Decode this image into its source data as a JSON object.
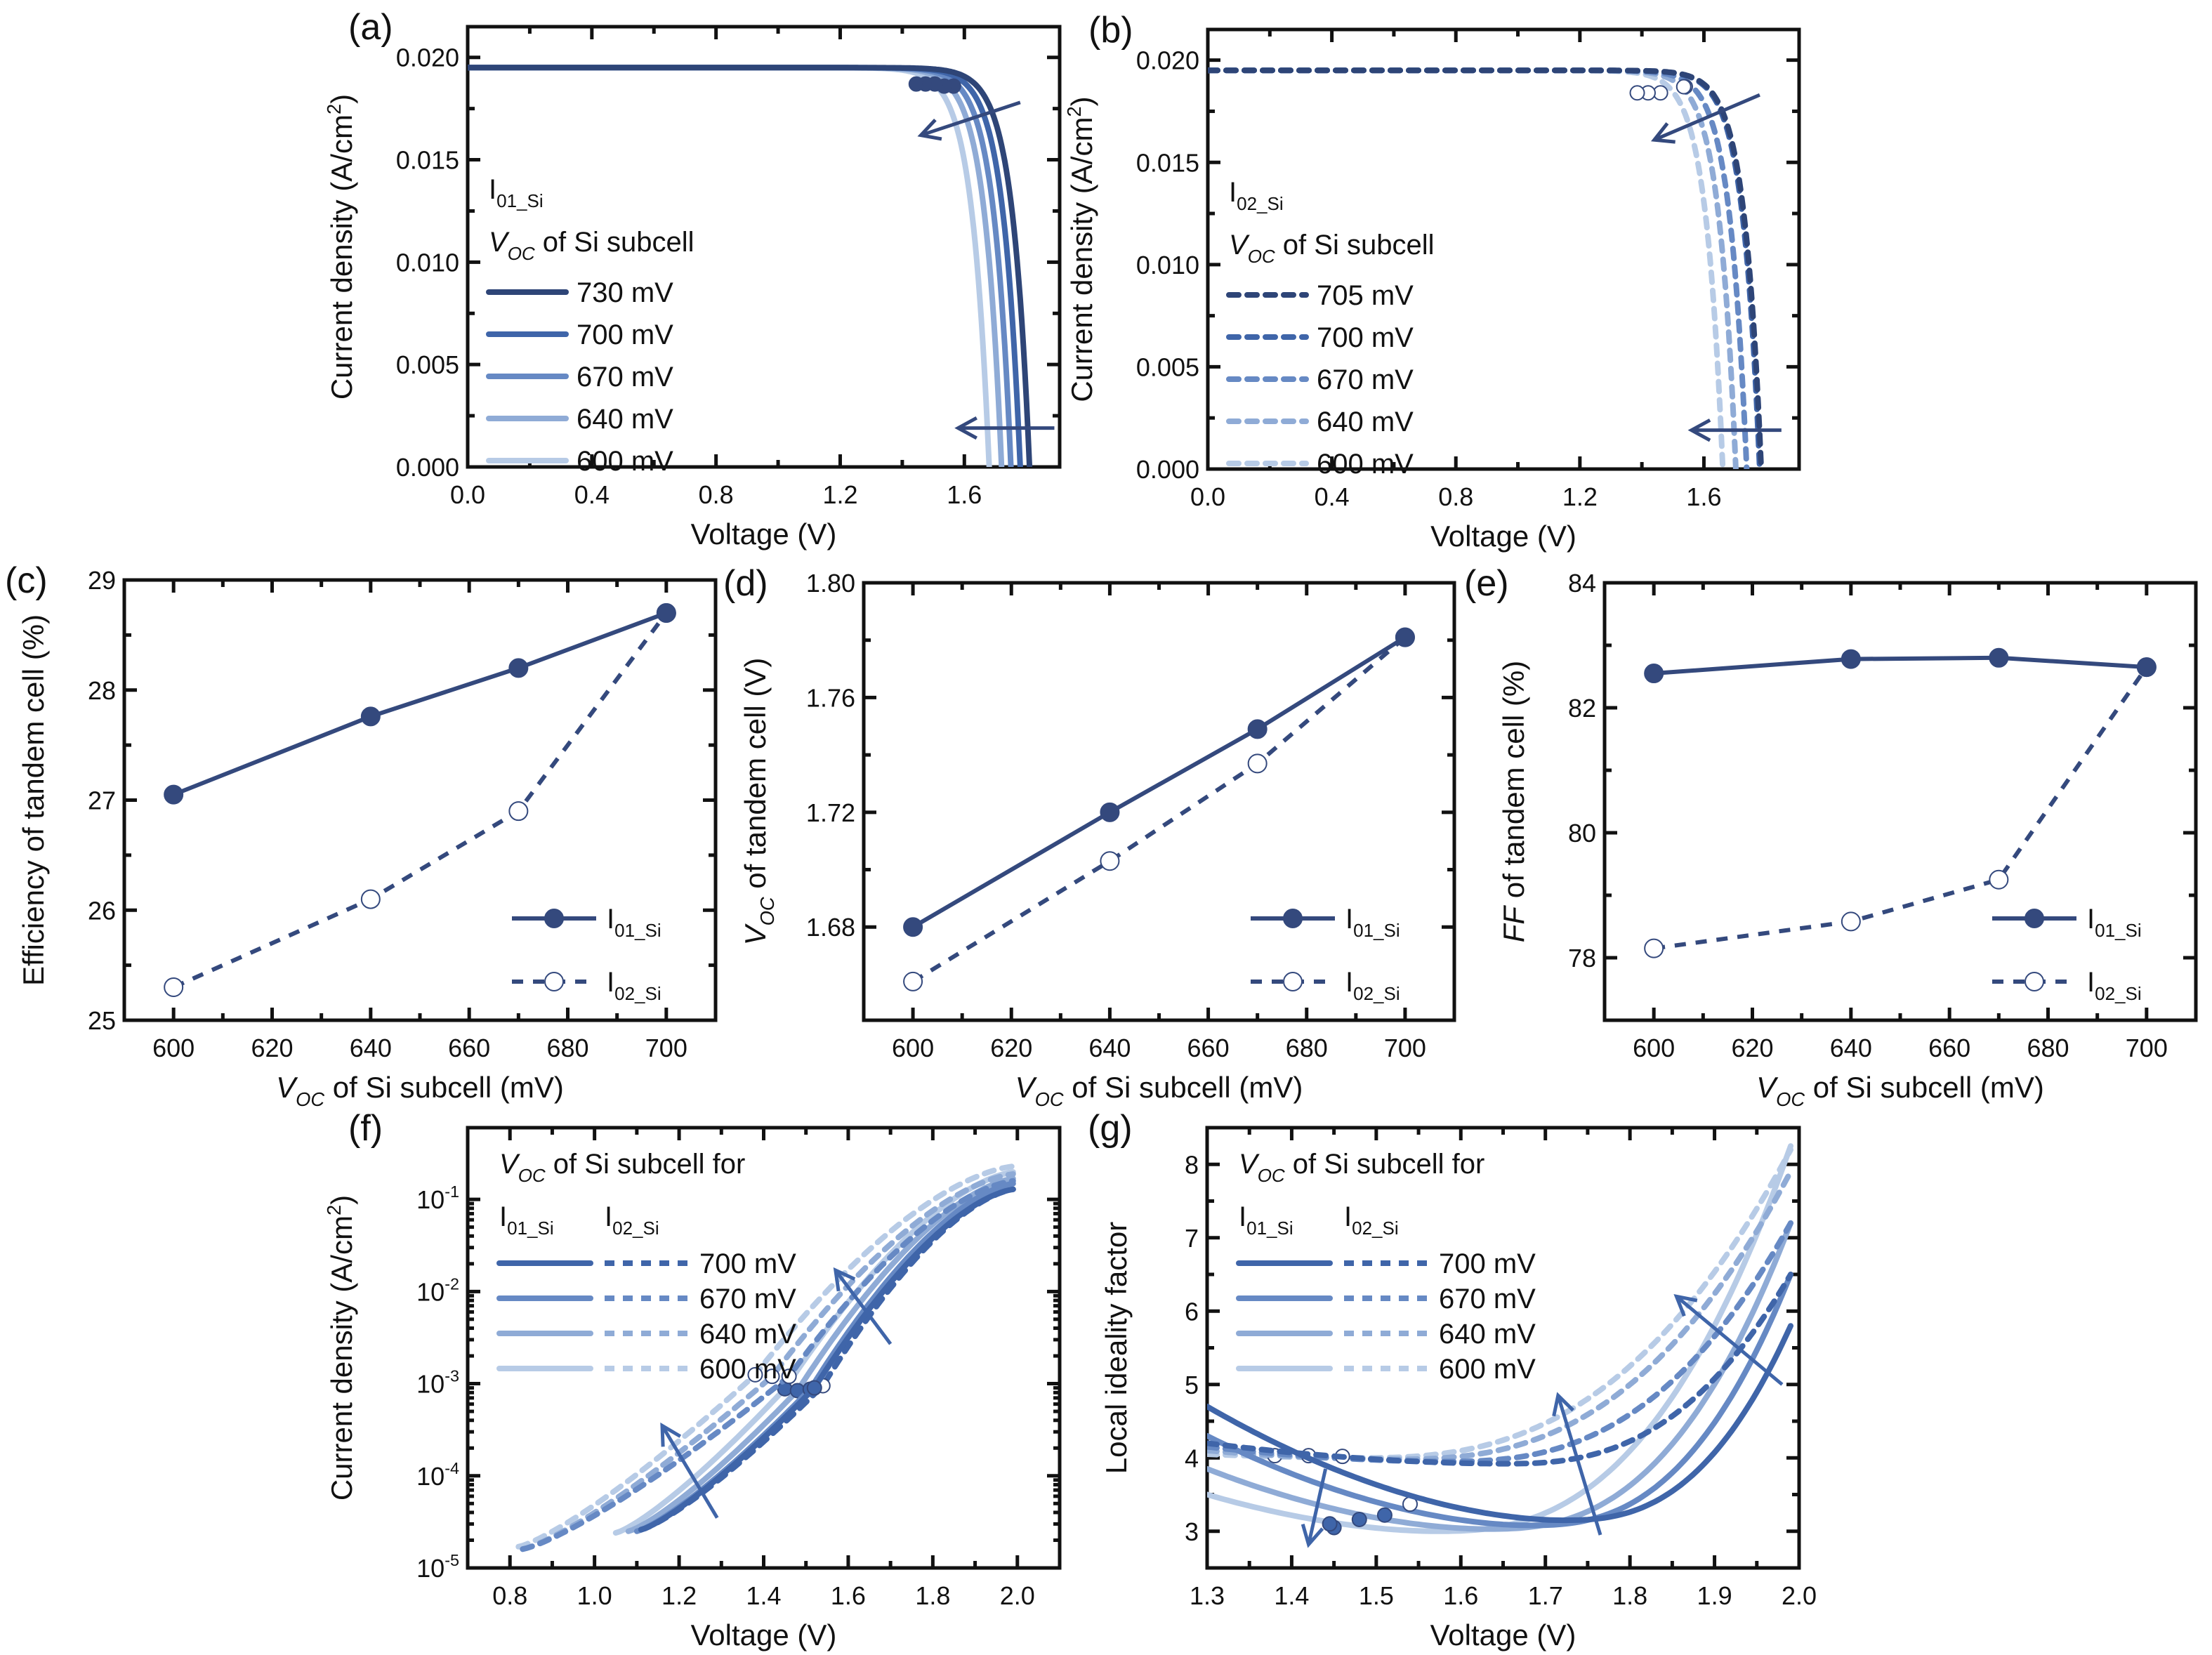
{
  "colors": {
    "s730": "#2e4577",
    "s705": "#2e4577",
    "s700": "#3f65a9",
    "s670": "#6689c4",
    "s640": "#8fabd6",
    "s600": "#b7cbe6",
    "marker": "#34497d",
    "axis": "#111111"
  },
  "chart_data": [
    {
      "id": "a",
      "panel_label": "(a)",
      "type": "line",
      "xlabel": "Voltage (V)",
      "ylabel": "Current density (A/cm²)",
      "xlim": [
        0.0,
        1.907
      ],
      "ylim": [
        0.0,
        0.0215
      ],
      "xticks": [
        0.0,
        0.4,
        0.8,
        1.2,
        1.6
      ],
      "xtick_labels": [
        "0.0",
        "0.4",
        "0.8",
        "1.2",
        "1.6"
      ],
      "yticks": [
        0.0,
        0.005,
        0.01,
        0.015,
        0.02
      ],
      "ytick_labels": [
        "0.000",
        "0.005",
        "0.010",
        "0.015",
        "0.020"
      ],
      "legend_header": [
        "I01_Si",
        "VOC of Si subcell"
      ],
      "legend_location": "center-left",
      "line_style": "solid",
      "jsc": 0.0195,
      "series": [
        {
          "name": "730 mV",
          "color_key": "s730",
          "voc": 1.81,
          "mpp": [
            1.565,
            0.0186
          ]
        },
        {
          "name": "700 mV",
          "color_key": "s700",
          "voc": 1.78,
          "mpp": [
            1.535,
            0.0186
          ]
        },
        {
          "name": "670 mV",
          "color_key": "s670",
          "voc": 1.75,
          "mpp": [
            1.505,
            0.0187
          ]
        },
        {
          "name": "640 mV",
          "color_key": "s640",
          "voc": 1.72,
          "mpp": [
            1.475,
            0.0187
          ]
        },
        {
          "name": "600 mV",
          "color_key": "s600",
          "voc": 1.68,
          "mpp": [
            1.445,
            0.0187
          ]
        }
      ],
      "annotations": [
        {
          "type": "arrow",
          "from": [
            1.78,
            0.0178
          ],
          "to": [
            1.46,
            0.0162
          ]
        },
        {
          "type": "arrow",
          "from": [
            1.89,
            0.0019
          ],
          "to": [
            1.58,
            0.0019
          ]
        }
      ]
    },
    {
      "id": "b",
      "panel_label": "(b)",
      "type": "line",
      "xlabel": "Voltage (V)",
      "ylabel": "Current density (A/cm²)",
      "xlim": [
        0.0,
        1.907
      ],
      "ylim": [
        0.0,
        0.0215
      ],
      "xticks": [
        0.0,
        0.4,
        0.8,
        1.2,
        1.6
      ],
      "xtick_labels": [
        "0.0",
        "0.4",
        "0.8",
        "1.2",
        "1.6"
      ],
      "yticks": [
        0.0,
        0.005,
        0.01,
        0.015,
        0.02
      ],
      "ytick_labels": [
        "0.000",
        "0.005",
        "0.010",
        "0.015",
        "0.020"
      ],
      "legend_header": [
        "I02_Si",
        "VOC of Si subcell"
      ],
      "legend_location": "center-left",
      "line_style": "dashed",
      "jsc": 0.0195,
      "series": [
        {
          "name": "705 mV",
          "color_key": "s705",
          "voc": 1.785,
          "mpp": [
            1.54,
            0.0187
          ]
        },
        {
          "name": "700 mV",
          "color_key": "s700",
          "voc": 1.78,
          "mpp": [
            1.535,
            0.0187
          ]
        },
        {
          "name": "670 mV",
          "color_key": "s670",
          "voc": 1.738,
          "mpp": [
            1.46,
            0.0184
          ]
        },
        {
          "name": "640 mV",
          "color_key": "s640",
          "voc": 1.703,
          "mpp": [
            1.42,
            0.0184
          ]
        },
        {
          "name": "600 mV",
          "color_key": "s600",
          "voc": 1.661,
          "mpp": [
            1.385,
            0.0184
          ]
        }
      ],
      "annotations": [
        {
          "type": "arrow",
          "from": [
            1.78,
            0.0183
          ],
          "to": [
            1.44,
            0.0161
          ]
        },
        {
          "type": "arrow",
          "from": [
            1.85,
            0.0019
          ],
          "to": [
            1.56,
            0.0019
          ]
        }
      ]
    },
    {
      "id": "c",
      "panel_label": "(c)",
      "type": "line",
      "xlabel": "VOC of Si subcell (mV)",
      "ylabel": "Efficiency of tandem cell (%)",
      "xlim": [
        590,
        710
      ],
      "ylim": [
        25,
        29
      ],
      "xticks": [
        600,
        620,
        640,
        660,
        680,
        700
      ],
      "xtick_labels": [
        "600",
        "620",
        "640",
        "660",
        "680",
        "700"
      ],
      "yticks": [
        25,
        26,
        27,
        28,
        29
      ],
      "ytick_labels": [
        "25",
        "26",
        "27",
        "28",
        "29"
      ],
      "legend_location": "bottom-right",
      "x": [
        600,
        640,
        670,
        700
      ],
      "series": [
        {
          "name": "I01_Si",
          "style": "solid",
          "marker": "filled",
          "values": [
            27.05,
            27.76,
            28.2,
            28.7
          ]
        },
        {
          "name": "I02_Si",
          "style": "dashed",
          "marker": "open",
          "values": [
            25.3,
            26.1,
            26.9,
            28.7
          ]
        }
      ]
    },
    {
      "id": "d",
      "panel_label": "(d)",
      "type": "line",
      "xlabel": "VOC of Si subcell (mV)",
      "ylabel": "VOC of tandem cell (V)",
      "xlim": [
        590,
        710
      ],
      "ylim": [
        1.6475,
        1.8
      ],
      "xticks": [
        600,
        620,
        640,
        660,
        680,
        700
      ],
      "xtick_labels": [
        "600",
        "620",
        "640",
        "660",
        "680",
        "700"
      ],
      "yticks": [
        1.68,
        1.72,
        1.76,
        1.8
      ],
      "ytick_labels": [
        "1.68",
        "1.72",
        "1.76",
        "1.80"
      ],
      "legend_location": "bottom-right",
      "x": [
        600,
        640,
        670,
        700
      ],
      "series": [
        {
          "name": "I01_Si",
          "style": "solid",
          "marker": "filled",
          "values": [
            1.68,
            1.72,
            1.749,
            1.781
          ]
        },
        {
          "name": "I02_Si",
          "style": "dashed",
          "marker": "open",
          "values": [
            1.661,
            1.703,
            1.737,
            1.781
          ]
        }
      ]
    },
    {
      "id": "e",
      "panel_label": "(e)",
      "type": "line",
      "xlabel": "VOC of Si subcell (mV)",
      "ylabel": "FF of tandem cell (%)",
      "xlim": [
        590,
        710
      ],
      "ylim": [
        77,
        84
      ],
      "xticks": [
        600,
        620,
        640,
        660,
        680,
        700
      ],
      "xtick_labels": [
        "600",
        "620",
        "640",
        "660",
        "680",
        "700"
      ],
      "yticks": [
        78,
        80,
        82,
        84
      ],
      "ytick_labels": [
        "78",
        "80",
        "82",
        "84"
      ],
      "legend_location": "bottom-right",
      "x": [
        600,
        640,
        670,
        700
      ],
      "series": [
        {
          "name": "I01_Si",
          "style": "solid",
          "marker": "filled",
          "values": [
            82.55,
            82.78,
            82.8,
            82.65
          ]
        },
        {
          "name": "I02_Si",
          "style": "dashed",
          "marker": "open",
          "values": [
            78.15,
            78.58,
            79.25,
            82.65
          ]
        }
      ]
    },
    {
      "id": "f",
      "panel_label": "(f)",
      "type": "line",
      "scale_y": "log",
      "xlabel": "Voltage (V)",
      "ylabel": "Current density (A/cm²)",
      "xlim": [
        0.7,
        2.1
      ],
      "ylim": [
        1e-05,
        0.6
      ],
      "xticks": [
        0.8,
        1.0,
        1.2,
        1.4,
        1.6,
        1.8,
        2.0
      ],
      "xtick_labels": [
        "0.8",
        "1.0",
        "1.2",
        "1.4",
        "1.6",
        "1.8",
        "2.0"
      ],
      "yticks": [
        1e-05,
        0.0001,
        0.001,
        0.01,
        0.1
      ],
      "ytick_labels": [
        "10-5",
        "10-4",
        "10-3",
        "10-2",
        "10-1"
      ],
      "legend_header": [
        "VOC of Si subcell for",
        "I01_Si",
        "I02_Si"
      ],
      "legend_location": "top-left",
      "series": [
        {
          "name": "700 mV",
          "color_key": "s700",
          "solid": {
            "x0": 1.11,
            "y0": 2.6e-05,
            "mpp": [
              1.52,
              0.0009
            ],
            "yend": 0.13
          },
          "dashed": {
            "x0": 1.11,
            "y0": 2.6e-05,
            "mpp": [
              1.54,
              0.00095
            ],
            "yend": 0.13
          }
        },
        {
          "name": "670 mV",
          "color_key": "s670",
          "solid": {
            "x0": 1.1,
            "y0": 2.5e-05,
            "mpp": [
              1.51,
              0.00087
            ],
            "yend": 0.15
          },
          "dashed": {
            "x0": 0.83,
            "y0": 1.6e-05,
            "mpp": [
              1.46,
              0.0012
            ],
            "yend": 0.16
          }
        },
        {
          "name": "640 mV",
          "color_key": "s640",
          "solid": {
            "x0": 1.08,
            "y0": 2.5e-05,
            "mpp": [
              1.48,
              0.00084
            ],
            "yend": 0.17
          },
          "dashed": {
            "x0": 0.83,
            "y0": 1.6e-05,
            "mpp": [
              1.42,
              0.0012
            ],
            "yend": 0.19
          }
        },
        {
          "name": "600 mV",
          "color_key": "s600",
          "solid": {
            "x0": 1.05,
            "y0": 2.4e-05,
            "mpp": [
              1.45,
              0.00088
            ],
            "yend": 0.2
          },
          "dashed": {
            "x0": 0.82,
            "y0": 1.7e-05,
            "mpp": [
              1.38,
              0.00125
            ],
            "yend": 0.23
          }
        }
      ],
      "annotations": [
        {
          "type": "arrow",
          "from": [
            1.29,
            3.5e-05
          ],
          "to": [
            1.16,
            0.00035
          ]
        },
        {
          "type": "arrow",
          "from": [
            1.7,
            0.0027
          ],
          "to": [
            1.57,
            0.017
          ]
        }
      ]
    },
    {
      "id": "g",
      "panel_label": "(g)",
      "type": "line",
      "xlabel": "Voltage (V)",
      "ylabel": "Local ideality factor",
      "xlim": [
        1.3,
        2.0
      ],
      "ylim": [
        2.5,
        8.5
      ],
      "xticks": [
        1.3,
        1.4,
        1.5,
        1.6,
        1.7,
        1.8,
        1.9,
        2.0
      ],
      "xtick_labels": [
        "1.3",
        "1.4",
        "1.5",
        "1.6",
        "1.7",
        "1.8",
        "1.9",
        "2.0"
      ],
      "yticks": [
        3,
        4,
        5,
        6,
        7,
        8
      ],
      "ytick_labels": [
        "3",
        "4",
        "5",
        "6",
        "7",
        "8"
      ],
      "legend_header": [
        "VOC of Si subcell for",
        "I01_Si",
        "I02_Si"
      ],
      "legend_location": "top-left",
      "series": [
        {
          "name": "700 mV",
          "color_key": "s700",
          "solid": {
            "start": 4.7,
            "min": [
              1.72,
              3.15
            ],
            "end": 5.8,
            "mpp": [
              1.51,
              3.22
            ]
          },
          "dashed": {
            "start": 4.2,
            "min": [
              1.65,
              3.92
            ],
            "end": 6.5,
            "mpp": [
              1.54,
              3.37
            ]
          }
        },
        {
          "name": "670 mV",
          "color_key": "s670",
          "solid": {
            "start": 4.3,
            "min": [
              1.68,
              3.08
            ],
            "end": 6.5,
            "mpp": [
              1.48,
              3.16
            ]
          },
          "dashed": {
            "start": 4.15,
            "min": [
              1.58,
              3.95
            ],
            "end": 7.2,
            "mpp": [
              1.46,
              4.02
            ]
          }
        },
        {
          "name": "640 mV",
          "color_key": "s640",
          "solid": {
            "start": 3.85,
            "min": [
              1.63,
              3.03
            ],
            "end": 7.2,
            "mpp": [
              1.445,
              3.1
            ]
          },
          "dashed": {
            "start": 4.1,
            "min": [
              1.52,
              3.98
            ],
            "end": 7.9,
            "mpp": [
              1.42,
              4.03
            ]
          }
        },
        {
          "name": "600 mV",
          "color_key": "s600",
          "solid": {
            "start": 3.5,
            "min": [
              1.57,
              3.0
            ],
            "end": 8.25,
            "mpp": [
              1.45,
              3.05
            ]
          },
          "dashed": {
            "start": 4.05,
            "min": [
              1.48,
              4.0
            ],
            "end": 8.2,
            "mpp": [
              1.38,
              4.03
            ]
          }
        }
      ],
      "annotations": [
        {
          "type": "arrow",
          "from": [
            1.44,
            3.85
          ],
          "to": [
            1.42,
            2.82
          ]
        },
        {
          "type": "arrow",
          "from": [
            1.765,
            2.95
          ],
          "to": [
            1.715,
            4.85
          ]
        },
        {
          "type": "arrow",
          "from": [
            1.98,
            5.0
          ],
          "to": [
            1.855,
            6.2
          ]
        }
      ]
    }
  ]
}
